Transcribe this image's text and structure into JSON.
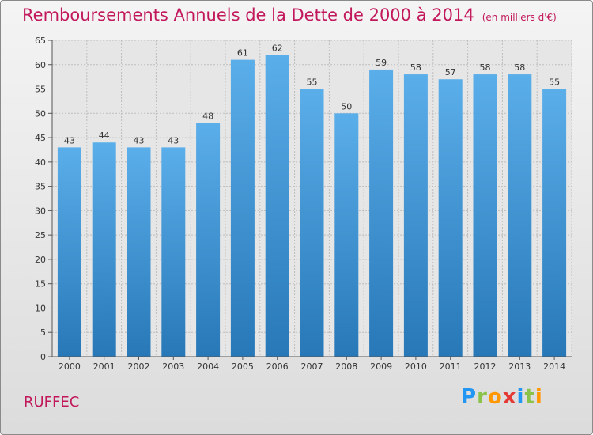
{
  "header": {
    "title": "Remboursements Annuels de la Dette de 2000 à 2014",
    "subtitle": "(en milliers d'€)"
  },
  "footer": {
    "commune": "RUFFEC",
    "brand_letters": [
      "P",
      "r",
      "o",
      "x",
      "i",
      "t",
      "i"
    ]
  },
  "colors": {
    "bar_top": "#5aaee9",
    "bar_bottom": "#2878b8",
    "title": "#c2185b"
  },
  "chart_data": {
    "type": "bar",
    "title": "Remboursements Annuels de la Dette de 2000 à 2014",
    "subtitle": "(en milliers d'€)",
    "xlabel": "",
    "ylabel": "",
    "categories": [
      "2000",
      "2001",
      "2002",
      "2003",
      "2004",
      "2005",
      "2006",
      "2007",
      "2008",
      "2009",
      "2010",
      "2011",
      "2012",
      "2013",
      "2014"
    ],
    "values": [
      43,
      44,
      43,
      43,
      48,
      61,
      62,
      55,
      50,
      59,
      58,
      57,
      58,
      58,
      55
    ],
    "ylim": [
      0,
      65
    ],
    "yticks": [
      0,
      5,
      10,
      15,
      20,
      25,
      30,
      35,
      40,
      45,
      50,
      55,
      60,
      65
    ],
    "grid": true,
    "legend": "none"
  }
}
